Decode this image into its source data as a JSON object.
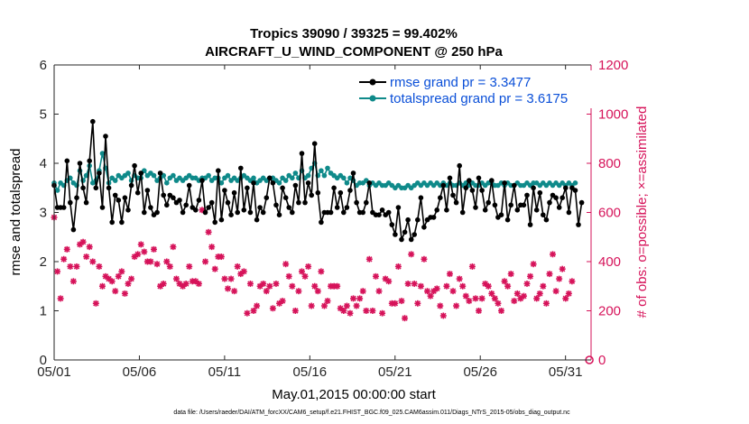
{
  "chart_data": {
    "type": "line",
    "title_line1": "Tropics 39090 / 39325 = 99.402%",
    "title_line2": "AIRCRAFT_U_WIND_COMPONENT @ 250 hPa",
    "xlabel": "May.01,2015 00:00:00 start",
    "ylabel_left": "rmse and totalspread",
    "ylabel_right": "# of obs: o=possible; ×=assimilated",
    "footer": "data file: /Users/raeder/DAI/ATM_forcXX/CAM6_setup/f.e21.FHIST_BGC.f09_025.CAM6assim.011/Diags_NTrS_2015-05/obs_diag_output.nc",
    "x_range": [
      1,
      32.5
    ],
    "ylim_left": [
      0,
      6
    ],
    "ylim_right": [
      0,
      1200
    ],
    "x_ticks": [
      {
        "v": 1,
        "label": "05/01"
      },
      {
        "v": 6,
        "label": "05/06"
      },
      {
        "v": 11,
        "label": "05/11"
      },
      {
        "v": 16,
        "label": "05/16"
      },
      {
        "v": 21,
        "label": "05/21"
      },
      {
        "v": 26,
        "label": "05/26"
      },
      {
        "v": 31,
        "label": "05/31"
      }
    ],
    "y_ticks_left": [
      {
        "v": 0,
        "label": "0"
      },
      {
        "v": 1,
        "label": "1"
      },
      {
        "v": 2,
        "label": "2"
      },
      {
        "v": 3,
        "label": "3"
      },
      {
        "v": 4,
        "label": "4"
      },
      {
        "v": 5,
        "label": "5"
      },
      {
        "v": 6,
        "label": "6"
      }
    ],
    "y_ticks_right": [
      {
        "v": 0,
        "label": "0"
      },
      {
        "v": 200,
        "label": "200"
      },
      {
        "v": 400,
        "label": "400"
      },
      {
        "v": 600,
        "label": "600"
      },
      {
        "v": 800,
        "label": "800"
      },
      {
        "v": 1000,
        "label": "1000"
      },
      {
        "v": 1200,
        "label": "1200"
      }
    ],
    "series": [
      {
        "name": "rmse grand pr = 3.3477",
        "color": "#000000",
        "axis": "left",
        "values": [
          3.55,
          3.1,
          3.1,
          3.1,
          4.05,
          3.2,
          2.65,
          3.3,
          4.0,
          3.5,
          3.2,
          4.05,
          4.85,
          3.5,
          3.8,
          3.1,
          4.55,
          3.5,
          2.8,
          3.35,
          3.25,
          2.8,
          3.3,
          3.05,
          3.55,
          3.95,
          3.4,
          3.8,
          3.0,
          3.45,
          3.1,
          2.95,
          3.0,
          3.8,
          3.35,
          3.15,
          3.35,
          3.3,
          3.2,
          3.25,
          3.0,
          3.15,
          3.55,
          3.1,
          3.05,
          3.25,
          3.65,
          3.0,
          3.1,
          3.2,
          2.8,
          3.85,
          2.85,
          3.45,
          3.2,
          2.95,
          3.4,
          3.0,
          3.9,
          3.05,
          3.5,
          3.0,
          3.6,
          2.85,
          3.1,
          3.0,
          3.3,
          3.7,
          3.6,
          3.15,
          2.95,
          3.5,
          3.3,
          3.1,
          3.0,
          3.55,
          3.2,
          4.2,
          3.2,
          3.6,
          3.35,
          4.4,
          3.4,
          2.8,
          3.0,
          3.0,
          3.0,
          3.5,
          3.1,
          3.4,
          3.0,
          3.1,
          3.45,
          3.8,
          3.2,
          3.0,
          3.0,
          3.2,
          3.6,
          3.0,
          2.95,
          2.95,
          3.05,
          2.95,
          3.0,
          2.75,
          2.55,
          3.1,
          2.45,
          2.6,
          2.85,
          2.45,
          2.55,
          2.85,
          3.3,
          2.7,
          2.85,
          2.9,
          2.9,
          3.05,
          3.3,
          3.55,
          3.05,
          3.7,
          3.35,
          3.2,
          3.95,
          3.0,
          3.5,
          3.65,
          3.45,
          3.1,
          3.7,
          3.45,
          3.05,
          3.2,
          3.65,
          3.15,
          2.9,
          2.95,
          3.6,
          2.85,
          3.15,
          3.55,
          3.05,
          3.15,
          3.15,
          3.35,
          2.75,
          3.5,
          3.05,
          3.4,
          2.95,
          2.85,
          3.2,
          3.35,
          3.3,
          3.1,
          3.3,
          3.5,
          3.0,
          3.5,
          3.45,
          2.75,
          3.2
        ]
      },
      {
        "name": "totalspread grand pr = 3.6175",
        "color": "#0f8a8a",
        "axis": "left",
        "values": [
          3.6,
          3.45,
          3.6,
          3.55,
          3.65,
          3.7,
          3.6,
          3.55,
          3.85,
          3.65,
          3.75,
          3.95,
          3.6,
          3.65,
          3.85,
          4.2,
          3.9,
          3.6,
          3.7,
          3.65,
          3.75,
          3.7,
          3.75,
          3.8,
          3.65,
          3.75,
          3.7,
          3.7,
          3.85,
          3.75,
          3.8,
          3.75,
          3.65,
          3.7,
          3.75,
          3.6,
          3.7,
          3.75,
          3.65,
          3.7,
          3.65,
          3.7,
          3.75,
          3.7,
          3.7,
          3.65,
          3.7,
          3.7,
          3.75,
          3.65,
          3.7,
          3.7,
          3.6,
          3.7,
          3.75,
          3.65,
          3.7,
          3.65,
          3.7,
          3.75,
          3.7,
          3.65,
          3.7,
          3.6,
          3.65,
          3.7,
          3.65,
          3.7,
          3.7,
          3.65,
          3.6,
          3.7,
          3.65,
          3.75,
          3.7,
          3.8,
          3.7,
          3.85,
          3.7,
          3.75,
          3.9,
          4.0,
          3.75,
          3.85,
          3.75,
          3.9,
          3.8,
          3.75,
          3.7,
          3.75,
          3.7,
          3.6,
          3.7,
          3.65,
          3.55,
          3.6,
          3.6,
          3.65,
          3.55,
          3.6,
          3.55,
          3.6,
          3.55,
          3.55,
          3.6,
          3.55,
          3.5,
          3.55,
          3.5,
          3.5,
          3.55,
          3.5,
          3.55,
          3.6,
          3.55,
          3.6,
          3.55,
          3.6,
          3.55,
          3.6,
          3.55,
          3.6,
          3.55,
          3.6,
          3.55,
          3.55,
          3.6,
          3.55,
          3.6,
          3.55,
          3.6,
          3.55,
          3.55,
          3.6,
          3.55,
          3.6,
          3.6,
          3.55,
          3.55,
          3.6,
          3.55,
          3.6,
          3.55,
          3.55,
          3.6,
          3.55,
          3.55,
          3.6,
          3.55,
          3.6,
          3.6,
          3.55,
          3.6,
          3.55,
          3.6,
          3.55,
          3.6,
          3.55,
          3.6,
          3.55,
          3.6,
          3.55,
          3.6
        ]
      },
      {
        "name": "assimilated",
        "color": "#d6135a",
        "axis": "right",
        "values": [
          580,
          360,
          250,
          410,
          450,
          380,
          320,
          380,
          470,
          480,
          420,
          460,
          400,
          230,
          380,
          300,
          340,
          330,
          320,
          280,
          340,
          360,
          270,
          310,
          330,
          420,
          430,
          470,
          440,
          400,
          400,
          450,
          390,
          300,
          310,
          400,
          380,
          460,
          330,
          310,
          300,
          310,
          380,
          320,
          320,
          310,
          610,
          400,
          520,
          460,
          370,
          420,
          420,
          330,
          290,
          330,
          280,
          380,
          350,
          360,
          190,
          310,
          200,
          220,
          300,
          310,
          280,
          300,
          210,
          310,
          230,
          240,
          390,
          340,
          300,
          200,
          280,
          360,
          340,
          380,
          220,
          300,
          280,
          360,
          220,
          240,
          300,
          300,
          300,
          210,
          200,
          220,
          190,
          250,
          220,
          250,
          280,
          200,
          410,
          200,
          340,
          280,
          190,
          330,
          320,
          230,
          230,
          380,
          240,
          170,
          310,
          430,
          310,
          230,
          300,
          410,
          280,
          260,
          280,
          290,
          220,
          180,
          300,
          350,
          280,
          220,
          330,
          300,
          260,
          240,
          380,
          250,
          200,
          250,
          310,
          300,
          270,
          250,
          230,
          200,
          320,
          300,
          350,
          240,
          270,
          250,
          260,
          310,
          340,
          390,
          250,
          270,
          300,
          230,
          350,
          430,
          280,
          330,
          370,
          250,
          270,
          320
        ]
      },
      {
        "name": "possible_last",
        "color": "#d6135a",
        "axis": "right",
        "points": [
          {
            "x": 32.4,
            "y": 0
          }
        ]
      }
    ]
  }
}
